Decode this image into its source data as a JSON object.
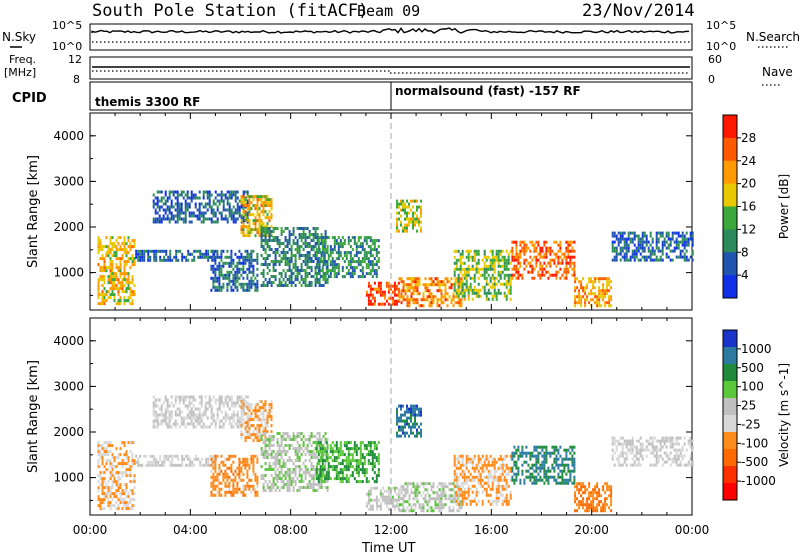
{
  "header": {
    "station": "South Pole Station (fitACF)",
    "beam": "Beam 09",
    "date": "23/Nov/2014"
  },
  "sky_panel": {
    "left_label": "N.Sky",
    "right_label": "N.Search",
    "left_ticks": [
      "10^5",
      "10^0"
    ],
    "right_ticks": [
      "10^5",
      "10^0"
    ]
  },
  "freq_panel": {
    "left_label_line1": "Freq.",
    "left_label_line2": "[MHz]",
    "right_label": "Nave",
    "left_ticks": [
      "12",
      "8"
    ],
    "right_ticks": [
      "60",
      "0"
    ]
  },
  "cpid_panel": {
    "label": "CPID",
    "programs": [
      {
        "name": "themis 3300 RF",
        "start_hour": 0
      },
      {
        "name": "normalsound (fast) -157 RF",
        "start_hour": 12
      }
    ]
  },
  "time_axis": {
    "label": "Time UT",
    "ticks": [
      "00:00",
      "04:00",
      "08:00",
      "12:00",
      "16:00",
      "20:00",
      "00:00"
    ],
    "range_hours": [
      0,
      24
    ]
  },
  "colors": {
    "power_scale": [
      "#1030e8",
      "#2055b0",
      "#2d8a5a",
      "#3aa83a",
      "#e8c800",
      "#ff9a00",
      "#ff5a00",
      "#ff1800"
    ],
    "velocity_scale": [
      "#1a33c8",
      "#2d7aa0",
      "#1f8a3a",
      "#5ac83a",
      "#c0c0c0",
      "#d8d8d8",
      "#ff8c1a",
      "#ff6a00",
      "#ff3000",
      "#ff0000"
    ]
  },
  "chart_data": [
    {
      "type": "heatmap",
      "title": "",
      "ylabel": "Slant Range [km]",
      "xlabel": "",
      "ylim": [
        180,
        4500
      ],
      "yticks": [
        "1000",
        "2000",
        "3000",
        "4000"
      ],
      "colorbar": {
        "label": "Power [dB]",
        "ticks": [
          "4",
          "8",
          "12",
          "16",
          "20",
          "24",
          "28"
        ],
        "range": [
          0,
          30
        ]
      },
      "echo_regions": [
        {
          "t_start": 0.3,
          "t_end": 1.8,
          "r_start": 300,
          "r_end": 1800,
          "level": 18
        },
        {
          "t_start": 1.8,
          "t_end": 5.0,
          "r_start": 1300,
          "r_end": 1500,
          "level": 6
        },
        {
          "t_start": 2.5,
          "t_end": 6.3,
          "r_start": 2100,
          "r_end": 2800,
          "level": 6
        },
        {
          "t_start": 4.8,
          "t_end": 6.7,
          "r_start": 600,
          "r_end": 1500,
          "level": 7
        },
        {
          "t_start": 6.0,
          "t_end": 7.2,
          "r_start": 1800,
          "r_end": 2700,
          "level": 18
        },
        {
          "t_start": 6.8,
          "t_end": 9.5,
          "r_start": 700,
          "r_end": 2000,
          "level": 9
        },
        {
          "t_start": 9.0,
          "t_end": 11.5,
          "r_start": 900,
          "r_end": 1800,
          "level": 10
        },
        {
          "t_start": 11.0,
          "t_end": 12.3,
          "r_start": 300,
          "r_end": 800,
          "level": 26
        },
        {
          "t_start": 12.2,
          "t_end": 13.2,
          "r_start": 1900,
          "r_end": 2600,
          "level": 16
        },
        {
          "t_start": 12.3,
          "t_end": 14.8,
          "r_start": 300,
          "r_end": 900,
          "level": 22
        },
        {
          "t_start": 14.5,
          "t_end": 16.8,
          "r_start": 400,
          "r_end": 1500,
          "level": 14
        },
        {
          "t_start": 16.8,
          "t_end": 19.3,
          "r_start": 900,
          "r_end": 1700,
          "level": 24
        },
        {
          "t_start": 19.3,
          "t_end": 20.8,
          "r_start": 300,
          "r_end": 900,
          "level": 20
        },
        {
          "t_start": 20.8,
          "t_end": 24.0,
          "r_start": 1300,
          "r_end": 1900,
          "level": 6
        }
      ]
    },
    {
      "type": "heatmap",
      "title": "",
      "ylabel": "Slant Range [km]",
      "xlabel": "Time UT",
      "ylim": [
        180,
        4500
      ],
      "yticks": [
        "1000",
        "2000",
        "3000",
        "4000"
      ],
      "colorbar": {
        "label": "Velocity [m s^-1]",
        "ticks": [
          "1000",
          "500",
          "100",
          "25",
          "-25",
          "-100",
          "-500",
          "-1000"
        ],
        "range": [
          -1000,
          1000
        ]
      },
      "echo_regions": [
        {
          "t_start": 0.3,
          "t_end": 1.8,
          "r_start": 300,
          "r_end": 1800,
          "level": -200
        },
        {
          "t_start": 1.8,
          "t_end": 5.0,
          "r_start": 1300,
          "r_end": 1500,
          "level": 10
        },
        {
          "t_start": 2.5,
          "t_end": 6.3,
          "r_start": 2100,
          "r_end": 2800,
          "level": -10
        },
        {
          "t_start": 4.8,
          "t_end": 6.7,
          "r_start": 600,
          "r_end": 1500,
          "level": -300
        },
        {
          "t_start": 6.0,
          "t_end": 7.2,
          "r_start": 1800,
          "r_end": 2700,
          "level": -200
        },
        {
          "t_start": 6.8,
          "t_end": 9.5,
          "r_start": 700,
          "r_end": 2000,
          "level": 150
        },
        {
          "t_start": 9.0,
          "t_end": 11.5,
          "r_start": 900,
          "r_end": 1800,
          "level": 400
        },
        {
          "t_start": 11.0,
          "t_end": 12.3,
          "r_start": 300,
          "r_end": 800,
          "level": 80
        },
        {
          "t_start": 12.2,
          "t_end": 13.2,
          "r_start": 1900,
          "r_end": 2600,
          "level": 700
        },
        {
          "t_start": 12.3,
          "t_end": 14.8,
          "r_start": 300,
          "r_end": 900,
          "level": 120
        },
        {
          "t_start": 14.5,
          "t_end": 16.8,
          "r_start": 400,
          "r_end": 1500,
          "level": -250
        },
        {
          "t_start": 16.8,
          "t_end": 19.3,
          "r_start": 900,
          "r_end": 1700,
          "level": 600
        },
        {
          "t_start": 19.3,
          "t_end": 20.8,
          "r_start": 300,
          "r_end": 900,
          "level": -400
        },
        {
          "t_start": 20.8,
          "t_end": 24.0,
          "r_start": 1300,
          "r_end": 1900,
          "level": 5
        }
      ]
    }
  ]
}
